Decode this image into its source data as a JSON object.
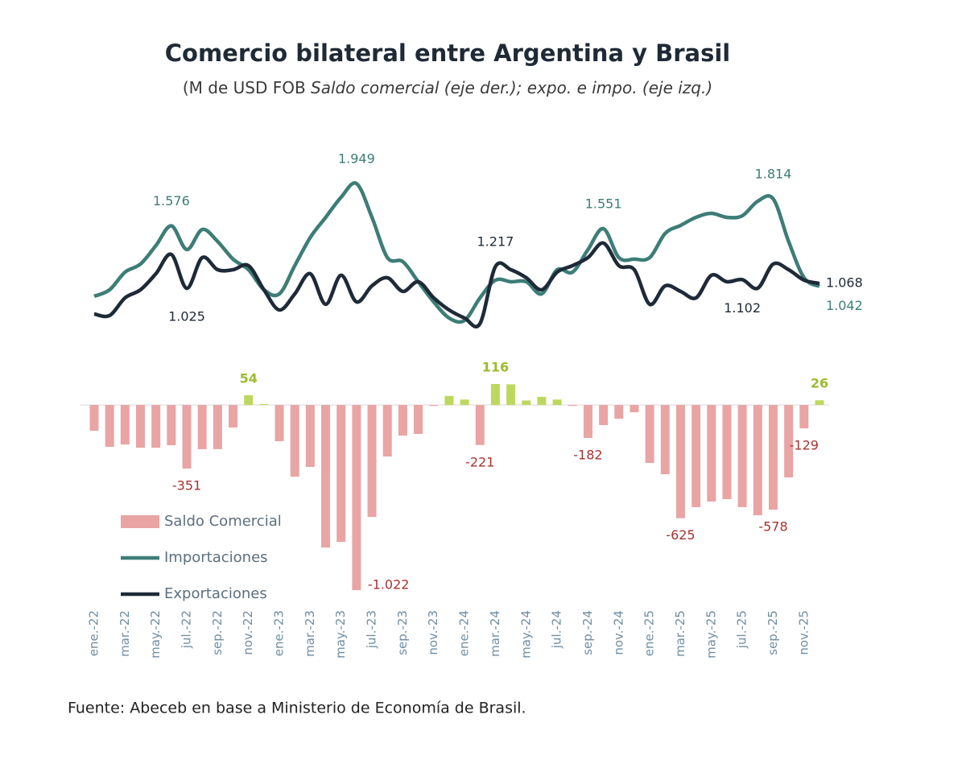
{
  "chart_data": {
    "type": "combo",
    "title": "Comercio bilateral entre Argentina y Brasil",
    "subtitle": [
      "(M de USD FOB",
      "Saldo comercial (eje der.); expo. e impo. (eje izq.)"
    ],
    "source": "Fuente: Abeceb en base a Ministerio de Economía de Brasil.",
    "categories": [
      "ene.-22",
      null,
      "mar.-22",
      null,
      "may.-22",
      null,
      "jul.-22",
      null,
      "sep.-22",
      null,
      "nov.-22",
      null,
      "ene.-23",
      null,
      "mar.-23",
      null,
      "may.-23",
      null,
      "jul.-23",
      null,
      "sep.-23",
      null,
      "nov.-23",
      null,
      "ene.-24",
      null,
      "mar.-24",
      null,
      "may.-24",
      null,
      "jul.-24",
      null,
      "sep.-24",
      null,
      "nov.-24",
      null,
      "ene.-25",
      null,
      "mar.-25",
      null,
      "may.-25",
      null,
      "jul.-25",
      null,
      "sep.-25",
      null,
      "nov.-25",
      null
    ],
    "ylim": [
      700,
      2100
    ],
    "y2lim": [
      -1100,
      150
    ],
    "legend": "lower left",
    "series": [
      {
        "name": "Saldo Comercial",
        "type": "bar",
        "axis": "y2",
        "color": "#e9a4a4",
        "positive_color": "#bcd85f",
        "label_color": "#a8322f",
        "positive_label_color": "#9bbb2e",
        "values": [
          -142,
          -231,
          -218,
          -236,
          -236,
          -222,
          -351,
          -244,
          -244,
          -124,
          54,
          5,
          -200,
          -396,
          -342,
          -787,
          -756,
          -1022,
          -618,
          -284,
          -169,
          -160,
          -5,
          50,
          30,
          -221,
          116,
          114,
          25,
          45,
          30,
          -5,
          -182,
          -111,
          -76,
          -40,
          -320,
          -382,
          -625,
          -564,
          -533,
          -520,
          -564,
          -609,
          -578,
          -400,
          -129,
          26
        ],
        "value_labels": [
          null,
          null,
          null,
          null,
          null,
          null,
          "-351",
          null,
          null,
          null,
          "54",
          null,
          null,
          null,
          null,
          null,
          null,
          "-1.022",
          null,
          null,
          null,
          null,
          null,
          null,
          null,
          "-221",
          "116",
          null,
          null,
          null,
          null,
          null,
          "-182",
          null,
          null,
          null,
          null,
          null,
          "-625",
          null,
          null,
          null,
          null,
          null,
          "-578",
          null,
          "-129",
          "26"
        ]
      },
      {
        "name": "Importaciones",
        "type": "line",
        "color": "#3d7d77",
        "label_color": "#3d7d77",
        "values": [
          955,
          1012,
          1168,
          1239,
          1402,
          1576,
          1367,
          1544,
          1438,
          1282,
          1189,
          1012,
          976,
          1225,
          1473,
          1651,
          1828,
          1949,
          1651,
          1296,
          1260,
          1083,
          905,
          763,
          742,
          941,
          1097,
          1083,
          1083,
          976,
          1189,
          1168,
          1367,
          1551,
          1296,
          1282,
          1296,
          1509,
          1580,
          1651,
          1686,
          1651,
          1665,
          1793,
          1814,
          1438,
          1118,
          1042
        ],
        "value_labels": [
          null,
          null,
          null,
          null,
          null,
          "1.576",
          null,
          null,
          null,
          null,
          null,
          null,
          null,
          null,
          null,
          null,
          null,
          "1.949",
          null,
          null,
          null,
          null,
          null,
          null,
          null,
          null,
          null,
          null,
          null,
          null,
          null,
          null,
          null,
          "1.551",
          null,
          null,
          null,
          null,
          null,
          null,
          null,
          null,
          null,
          null,
          "1.814",
          null,
          null,
          "1.042"
        ]
      },
      {
        "name": "Exportaciones",
        "type": "line",
        "color": "#1e2a37",
        "label_color": "#1e2a37",
        "values": [
          799,
          785,
          941,
          1012,
          1154,
          1324,
          1025,
          1296,
          1189,
          1189,
          1225,
          1012,
          834,
          976,
          1154,
          884,
          1140,
          905,
          1047,
          1118,
          998,
          1083,
          941,
          834,
          763,
          714,
          1217,
          1189,
          1118,
          1012,
          1168,
          1225,
          1296,
          1424,
          1225,
          1189,
          884,
          1047,
          998,
          941,
          1140,
          1083,
          1102,
          1026,
          1239,
          1189,
          1097,
          1068
        ],
        "value_labels": [
          null,
          null,
          null,
          null,
          null,
          null,
          "1.025",
          null,
          null,
          null,
          null,
          null,
          null,
          null,
          null,
          null,
          null,
          null,
          null,
          null,
          null,
          null,
          null,
          null,
          null,
          null,
          "1.217",
          null,
          null,
          null,
          null,
          null,
          null,
          null,
          null,
          null,
          null,
          null,
          null,
          null,
          null,
          null,
          "1.102",
          null,
          null,
          null,
          null,
          "1.068"
        ]
      }
    ]
  }
}
